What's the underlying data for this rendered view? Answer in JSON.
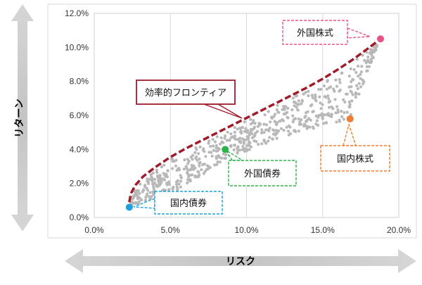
{
  "chart_data": {
    "type": "scatter",
    "xlabel": "リスク",
    "ylabel": "リターン",
    "xlim": [
      0,
      20
    ],
    "ylim": [
      0,
      12
    ],
    "x_ticks": [
      "0.0%",
      "5.0%",
      "10.0%",
      "15.0%",
      "20.0%"
    ],
    "y_ticks": [
      "0.0%",
      "2.0%",
      "4.0%",
      "6.0%",
      "8.0%",
      "10.0%",
      "12.0%"
    ],
    "grid": "vertical",
    "assets": [
      {
        "name": "国内債券",
        "x": 2.3,
        "y": 0.6,
        "color": "#1ba1e2"
      },
      {
        "name": "外国債券",
        "x": 8.6,
        "y": 4.0,
        "color": "#2db34a"
      },
      {
        "name": "国内株式",
        "x": 16.8,
        "y": 5.8,
        "color": "#ed7d31"
      },
      {
        "name": "外国株式",
        "x": 18.8,
        "y": 10.5,
        "color": "#e8528a"
      }
    ],
    "frontier": {
      "label": "効率的フロンティア",
      "color": "#a01c2b",
      "x": [
        2.3,
        2.4,
        2.7,
        3.2,
        4.0,
        5.0,
        6.0,
        7.0,
        8.0,
        9.0,
        10.0,
        11.0,
        12.0,
        13.0,
        14.0,
        15.0,
        16.0,
        17.0,
        18.0,
        18.8
      ],
      "y": [
        0.9,
        1.4,
        1.9,
        2.4,
        2.95,
        3.55,
        4.05,
        4.5,
        4.95,
        5.4,
        5.85,
        6.3,
        6.75,
        7.2,
        7.65,
        8.15,
        8.7,
        9.3,
        9.95,
        10.5
      ]
    },
    "portfolios_color": "#b8b8b8"
  }
}
